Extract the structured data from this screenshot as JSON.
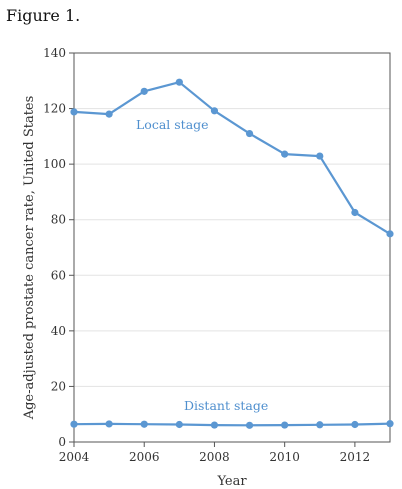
{
  "figure_label": "Figure 1.",
  "chart_data": {
    "type": "line",
    "title": "",
    "xlabel": "Year",
    "ylabel": "Age-adjusted prostate cancer rate, United States",
    "xlim": [
      2004,
      2013
    ],
    "ylim": [
      0,
      140
    ],
    "xticks": [
      2004,
      2006,
      2008,
      2010,
      2012
    ],
    "yticks": [
      0,
      20,
      40,
      60,
      80,
      100,
      120,
      140
    ],
    "grid": "horizontal",
    "x": [
      2004,
      2005,
      2006,
      2007,
      2008,
      2009,
      2010,
      2011,
      2012,
      2013
    ],
    "series": [
      {
        "name": "Local stage",
        "color": "#5b97d2",
        "values": [
          118.8,
          118.0,
          126.2,
          129.5,
          119.2,
          111.0,
          103.6,
          102.9,
          82.6,
          74.9
        ]
      },
      {
        "name": "Distant stage",
        "color": "#5b97d2",
        "values": [
          6.4,
          6.5,
          6.4,
          6.3,
          6.1,
          6.0,
          6.1,
          6.2,
          6.3,
          6.6
        ]
      }
    ]
  }
}
